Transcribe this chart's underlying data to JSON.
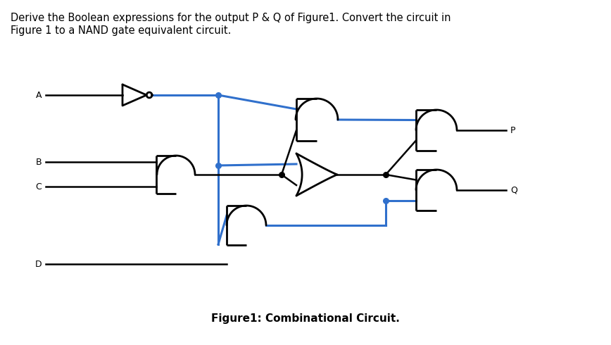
{
  "title_line1": "Derive the Boolean expressions for the output P & Q of Figure1. Convert the circuit in",
  "title_line2": "Figure 1 to a NAND gate equivalent circuit.",
  "caption": "Figure1: Combinational Circuit.",
  "title_fontsize": 10.5,
  "caption_fontsize": 11,
  "bg_color": "#ffffff",
  "bk": "#000000",
  "bl": "#3070cc",
  "lw": 1.8,
  "blw": 2.2,
  "glw": 2.0,
  "fig_w": 8.68,
  "fig_h": 4.9,
  "dpi": 100
}
